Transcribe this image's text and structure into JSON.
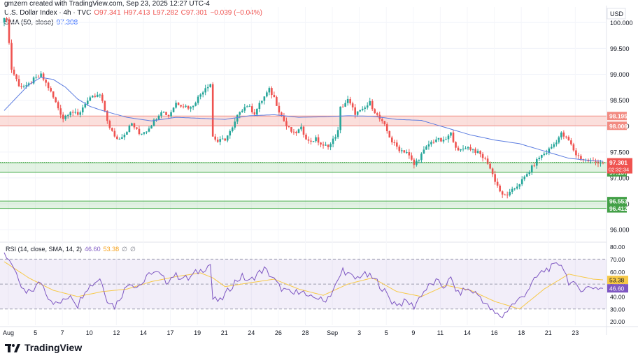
{
  "header": {
    "credit": "gmzern created with TradingView.com, Sep 23, 2025 12:27 UTC-4",
    "symbol": "U.S. Dollar Index · 4h · TVC",
    "ohlc": [
      "O97.341",
      "H97.413",
      "L97.282",
      "C97.301",
      "−0.039 (−0.04%)"
    ],
    "sma_label": "SMA (50, close)",
    "sma_value": "97.308"
  },
  "currency": "USD",
  "footer": {
    "brand": "TradingView"
  },
  "colors": {
    "up": "#26a69a",
    "down": "#ef5350",
    "sma": "#5b7ce0",
    "rsi": "#7e57c2",
    "rsi_ma": "#f7c948",
    "resistance": "#f28b82",
    "support": "#4caf50"
  },
  "chart_data": [
    {
      "type": "candlestick",
      "title": "U.S. Dollar Index · 4h · TVC",
      "currency": "USD",
      "ylim": [
        95.8,
        100.3
      ],
      "y_ticks": [
        "100.000",
        "99.500",
        "99.000",
        "98.500",
        "98.000",
        "97.500",
        "97.000",
        "96.500",
        "96.000"
      ],
      "x_ticks": [
        "Aug",
        "5",
        "7",
        "10",
        "12",
        "14",
        "17",
        "19",
        "21",
        "24",
        "26",
        "28",
        "Sep",
        "3",
        "5",
        "9",
        "11",
        "14",
        "16",
        "18",
        "21",
        "23"
      ],
      "zones": [
        {
          "kind": "resistance",
          "from": 98.006,
          "to": 98.195,
          "labels": [
            "98.195",
            "98.006"
          ]
        },
        {
          "kind": "support",
          "from": 97.107,
          "to": 97.292,
          "labels": [
            "97.292",
            "97.107"
          ]
        },
        {
          "kind": "support",
          "from": 96.412,
          "to": 96.553,
          "labels": [
            "96.553",
            "96.412"
          ]
        }
      ],
      "last_price": {
        "value": 97.301,
        "label": "97.301",
        "countdown": "02:32:34"
      },
      "series": [
        {
          "name": "SMA (50, close)",
          "points": [
            [
              0,
              98.3
            ],
            [
              5,
              98.55
            ],
            [
              10,
              98.8
            ],
            [
              15,
              98.94
            ],
            [
              20,
              98.9
            ],
            [
              25,
              98.75
            ],
            [
              30,
              98.52
            ],
            [
              35,
              98.38
            ],
            [
              40,
              98.3
            ],
            [
              50,
              98.17
            ],
            [
              60,
              98.1
            ],
            [
              70,
              98.17
            ],
            [
              80,
              98.15
            ],
            [
              90,
              98.13
            ],
            [
              100,
              98.2
            ],
            [
              110,
              98.22
            ],
            [
              120,
              98.17
            ],
            [
              130,
              98.18
            ],
            [
              140,
              98.2
            ],
            [
              150,
              98.19
            ],
            [
              160,
              98.13
            ],
            [
              170,
              98.11
            ],
            [
              180,
              97.97
            ],
            [
              190,
              97.83
            ],
            [
              200,
              97.73
            ],
            [
              210,
              97.66
            ],
            [
              220,
              97.52
            ],
            [
              230,
              97.38
            ],
            [
              240,
              97.33
            ],
            [
              250,
              97.31
            ]
          ]
        },
        {
          "name": "close",
          "points": [
            [
              0,
              100.05
            ],
            [
              1,
              100.1
            ],
            [
              3,
              99.1
            ],
            [
              6,
              98.8
            ],
            [
              9,
              98.75
            ],
            [
              12,
              98.9
            ],
            [
              15,
              98.98
            ],
            [
              18,
              98.75
            ],
            [
              21,
              98.45
            ],
            [
              24,
              98.15
            ],
            [
              27,
              98.3
            ],
            [
              30,
              98.2
            ],
            [
              33,
              98.45
            ],
            [
              36,
              98.55
            ],
            [
              39,
              98.6
            ],
            [
              41,
              98.3
            ],
            [
              43,
              97.95
            ],
            [
              46,
              97.75
            ],
            [
              49,
              97.85
            ],
            [
              52,
              98.05
            ],
            [
              55,
              97.85
            ],
            [
              58,
              97.92
            ],
            [
              61,
              98.1
            ],
            [
              64,
              98.3
            ],
            [
              67,
              98.2
            ],
            [
              70,
              98.45
            ],
            [
              73,
              98.4
            ],
            [
              76,
              98.35
            ],
            [
              79,
              98.55
            ],
            [
              82,
              98.75
            ],
            [
              84,
              98.82
            ],
            [
              85,
              97.8
            ],
            [
              87,
              97.7
            ],
            [
              90,
              97.75
            ],
            [
              93,
              97.95
            ],
            [
              96,
              98.3
            ],
            [
              99,
              98.4
            ],
            [
              102,
              98.25
            ],
            [
              105,
              98.5
            ],
            [
              108,
              98.7
            ],
            [
              110,
              98.55
            ],
            [
              112,
              98.3
            ],
            [
              115,
              98.0
            ],
            [
              118,
              97.85
            ],
            [
              121,
              97.95
            ],
            [
              124,
              97.7
            ],
            [
              127,
              97.75
            ],
            [
              130,
              97.6
            ],
            [
              133,
              97.65
            ],
            [
              136,
              97.9
            ],
            [
              137,
              98.35
            ],
            [
              140,
              98.5
            ],
            [
              143,
              98.25
            ],
            [
              146,
              98.3
            ],
            [
              149,
              98.45
            ],
            [
              152,
              98.2
            ],
            [
              155,
              98.0
            ],
            [
              158,
              97.7
            ],
            [
              161,
              97.55
            ],
            [
              164,
              97.5
            ],
            [
              167,
              97.25
            ],
            [
              170,
              97.45
            ],
            [
              173,
              97.65
            ],
            [
              176,
              97.75
            ],
            [
              179,
              97.7
            ],
            [
              182,
              97.85
            ],
            [
              185,
              97.5
            ],
            [
              188,
              97.6
            ],
            [
              191,
              97.55
            ],
            [
              194,
              97.45
            ],
            [
              197,
              97.3
            ],
            [
              200,
              96.95
            ],
            [
              203,
              96.65
            ],
            [
              206,
              96.7
            ],
            [
              209,
              96.85
            ],
            [
              212,
              97.0
            ],
            [
              215,
              97.2
            ],
            [
              218,
              97.4
            ],
            [
              221,
              97.5
            ],
            [
              224,
              97.65
            ],
            [
              227,
              97.85
            ],
            [
              230,
              97.72
            ],
            [
              233,
              97.45
            ],
            [
              236,
              97.35
            ],
            [
              239,
              97.32
            ],
            [
              242,
              97.31
            ],
            [
              244,
              97.301
            ]
          ]
        }
      ]
    },
    {
      "type": "line",
      "title": "RSI (14, close, SMA, 14, 2)",
      "ylim": [
        17,
        82
      ],
      "y_ticks": [
        "80.00",
        "70.00",
        "60.00",
        "50.00",
        "40.00",
        "30.00",
        "20.00"
      ],
      "bands": {
        "upper": 70,
        "middle": 50,
        "lower": 30
      },
      "labels": {
        "rsi": "46.60",
        "rsi_ma": "53.38",
        "extra": [
          "∅",
          "∅"
        ]
      },
      "series": [
        {
          "name": "RSI",
          "points": [
            [
              0,
              74
            ],
            [
              3,
              68
            ],
            [
              6,
              50
            ],
            [
              9,
              42
            ],
            [
              12,
              46
            ],
            [
              15,
              52
            ],
            [
              18,
              40
            ],
            [
              21,
              34
            ],
            [
              24,
              36
            ],
            [
              27,
              42
            ],
            [
              30,
              33
            ],
            [
              33,
              46
            ],
            [
              36,
              50
            ],
            [
              39,
              55
            ],
            [
              42,
              38
            ],
            [
              45,
              32
            ],
            [
              48,
              42
            ],
            [
              51,
              52
            ],
            [
              54,
              48
            ],
            [
              57,
              52
            ],
            [
              60,
              60
            ],
            [
              63,
              58
            ],
            [
              66,
              52
            ],
            [
              69,
              57
            ],
            [
              72,
              56
            ],
            [
              75,
              54
            ],
            [
              78,
              59
            ],
            [
              81,
              62
            ],
            [
              84,
              66
            ],
            [
              85,
              38
            ],
            [
              88,
              36
            ],
            [
              91,
              44
            ],
            [
              94,
              52
            ],
            [
              97,
              56
            ],
            [
              100,
              52
            ],
            [
              103,
              58
            ],
            [
              106,
              62
            ],
            [
              109,
              56
            ],
            [
              112,
              48
            ],
            [
              115,
              44
            ],
            [
              118,
              42
            ],
            [
              121,
              46
            ],
            [
              124,
              38
            ],
            [
              127,
              40
            ],
            [
              130,
              36
            ],
            [
              133,
              42
            ],
            [
              136,
              52
            ],
            [
              138,
              62
            ],
            [
              140,
              58
            ],
            [
              143,
              54
            ],
            [
              146,
              58
            ],
            [
              149,
              56
            ],
            [
              152,
              52
            ],
            [
              155,
              44
            ],
            [
              158,
              36
            ],
            [
              161,
              34
            ],
            [
              164,
              36
            ],
            [
              167,
              32
            ],
            [
              170,
              42
            ],
            [
              173,
              48
            ],
            [
              176,
              52
            ],
            [
              179,
              48
            ],
            [
              182,
              54
            ],
            [
              185,
              42
            ],
            [
              188,
              46
            ],
            [
              191,
              44
            ],
            [
              194,
              40
            ],
            [
              197,
              32
            ],
            [
              200,
              26
            ],
            [
              203,
              24
            ],
            [
              206,
              32
            ],
            [
              209,
              36
            ],
            [
              212,
              42
            ],
            [
              215,
              50
            ],
            [
              218,
              58
            ],
            [
              221,
              62
            ],
            [
              224,
              64
            ],
            [
              227,
              67
            ],
            [
              230,
              52
            ],
            [
              233,
              48
            ],
            [
              236,
              46
            ],
            [
              239,
              48
            ],
            [
              242,
              47
            ],
            [
              244,
              46.6
            ]
          ]
        },
        {
          "name": "RSI MA",
          "points": [
            [
              0,
              68
            ],
            [
              10,
              55
            ],
            [
              20,
              45
            ],
            [
              30,
              40
            ],
            [
              40,
              44
            ],
            [
              50,
              46
            ],
            [
              60,
              52
            ],
            [
              70,
              56
            ],
            [
              80,
              59
            ],
            [
              85,
              55
            ],
            [
              90,
              48
            ],
            [
              100,
              51
            ],
            [
              110,
              54
            ],
            [
              120,
              46
            ],
            [
              130,
              41
            ],
            [
              140,
              50
            ],
            [
              150,
              55
            ],
            [
              160,
              44
            ],
            [
              170,
              40
            ],
            [
              180,
              49
            ],
            [
              190,
              45
            ],
            [
              200,
              36
            ],
            [
              210,
              30
            ],
            [
              220,
              46
            ],
            [
              230,
              58
            ],
            [
              240,
              54
            ],
            [
              244,
              53.4
            ]
          ]
        }
      ]
    }
  ]
}
